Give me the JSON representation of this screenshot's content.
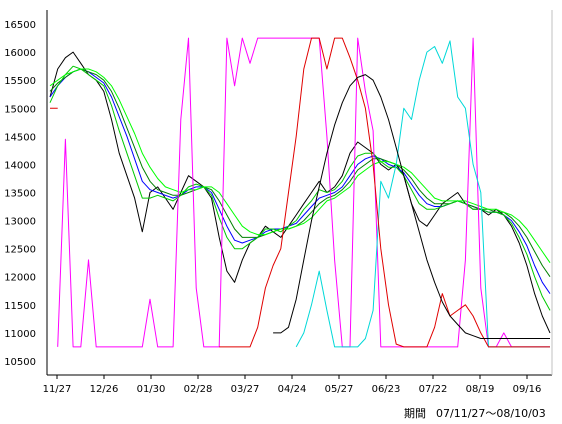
{
  "chart_data": {
    "type": "line",
    "title": "",
    "xlabel": "",
    "ylabel": "",
    "ylim": [
      10250,
      16750
    ],
    "yticks": [
      10500,
      11000,
      11500,
      12000,
      12500,
      13000,
      13500,
      14000,
      14500,
      15000,
      15500,
      16000,
      16500
    ],
    "xticks": [
      "11/27",
      "12/26",
      "01/30",
      "02/28",
      "03/27",
      "04/24",
      "05/27",
      "06/23",
      "07/22",
      "08/19",
      "09/16"
    ],
    "grid": false,
    "legend": "none",
    "series": [
      {
        "color": "#000000",
        "values": [
          15200,
          15700,
          15900,
          16000,
          15800,
          15600,
          15500,
          15300,
          14800,
          14200,
          13800,
          13400,
          12800,
          13500,
          13600,
          13400,
          13200,
          13500,
          13800,
          13700,
          13600,
          13400,
          12700,
          12100,
          11900,
          12300,
          12600,
          12700,
          12900,
          12800,
          12700,
          12900,
          13100,
          13300,
          13500,
          13700,
          13500,
          13600,
          13800,
          14200,
          14400,
          14300,
          14200,
          14000,
          13900,
          14000,
          13800,
          13300,
          13000,
          12900,
          13100,
          13300,
          13400,
          13500,
          13300,
          13200,
          13200,
          13100,
          13200,
          13100,
          12900,
          12600,
          12200,
          11700,
          11300,
          11000
        ]
      },
      {
        "color": "#0000ff",
        "values": [
          15200,
          15400,
          15550,
          15650,
          15700,
          15650,
          15550,
          15450,
          15200,
          14850,
          14500,
          14100,
          13700,
          13550,
          13500,
          13450,
          13400,
          13450,
          13550,
          13600,
          13600,
          13500,
          13200,
          12900,
          12650,
          12600,
          12650,
          12700,
          12800,
          12850,
          12850,
          12900,
          12950,
          13100,
          13250,
          13400,
          13450,
          13500,
          13600,
          13800,
          14000,
          14100,
          14150,
          14100,
          14000,
          13950,
          13850,
          13650,
          13450,
          13300,
          13250,
          13250,
          13300,
          13350,
          13300,
          13250,
          13200,
          13150,
          13150,
          13100,
          13000,
          12800,
          12550,
          12200,
          11900,
          11700
        ]
      },
      {
        "color": "#008000",
        "values": [
          15300,
          15450,
          15550,
          15650,
          15700,
          15650,
          15600,
          15500,
          15300,
          15000,
          14650,
          14300,
          13950,
          13700,
          13550,
          13500,
          13450,
          13450,
          13500,
          13550,
          13600,
          13550,
          13350,
          13100,
          12850,
          12700,
          12700,
          12700,
          12750,
          12800,
          12850,
          12850,
          12900,
          13000,
          13150,
          13300,
          13400,
          13450,
          13550,
          13700,
          13900,
          14000,
          14100,
          14100,
          14050,
          14000,
          13900,
          13750,
          13550,
          13400,
          13300,
          13300,
          13300,
          13350,
          13300,
          13250,
          13200,
          13200,
          13150,
          13150,
          13050,
          12900,
          12700,
          12450,
          12200,
          12000
        ]
      },
      {
        "color": "#00c800",
        "values": [
          15100,
          15400,
          15600,
          15750,
          15700,
          15600,
          15500,
          15400,
          15050,
          14600,
          14200,
          13800,
          13400,
          13400,
          13450,
          13400,
          13350,
          13450,
          13600,
          13650,
          13600,
          13450,
          13050,
          12700,
          12500,
          12500,
          12600,
          12700,
          12850,
          12850,
          12800,
          12900,
          13000,
          13200,
          13350,
          13550,
          13500,
          13550,
          13700,
          13950,
          14150,
          14200,
          14200,
          14050,
          13950,
          13950,
          13800,
          13550,
          13300,
          13200,
          13200,
          13250,
          13300,
          13350,
          13300,
          13200,
          13200,
          13150,
          13150,
          13100,
          12950,
          12700,
          12400,
          12000,
          11650,
          11400
        ]
      },
      {
        "color": "#00ff00",
        "values": [
          15400,
          15500,
          15600,
          15650,
          15700,
          15700,
          15650,
          15550,
          15400,
          15150,
          14850,
          14550,
          14200,
          13950,
          13750,
          13600,
          13550,
          13500,
          13550,
          13550,
          13600,
          13600,
          13500,
          13300,
          13100,
          12900,
          12800,
          12750,
          12750,
          12800,
          12850,
          12850,
          12900,
          12950,
          13050,
          13200,
          13350,
          13400,
          13500,
          13600,
          13800,
          13900,
          14000,
          14050,
          14050,
          14000,
          13950,
          13850,
          13700,
          13550,
          13400,
          13350,
          13350,
          13350,
          13350,
          13300,
          13250,
          13200,
          13200,
          13150,
          13100,
          13000,
          12850,
          12650,
          12450,
          12250
        ]
      },
      {
        "color": "#ff00ff",
        "values": [
          null,
          10750,
          14450,
          10750,
          10750,
          12300,
          10750,
          10750,
          10750,
          10750,
          10750,
          10750,
          10750,
          11600,
          10750,
          10750,
          10750,
          14800,
          16250,
          11800,
          10750,
          10750,
          10750,
          16250,
          15400,
          16250,
          15800,
          16250,
          16250,
          16250,
          16250,
          16250,
          16250,
          16250,
          16250,
          16250,
          14500,
          12300,
          10750,
          10750,
          16250,
          15300,
          14600,
          10750,
          10750,
          10750,
          10750,
          10750,
          10750,
          10750,
          10750,
          10750,
          10750,
          10750,
          12300,
          16250,
          11800,
          10750,
          10750,
          11000,
          10750,
          10750,
          10750,
          10750,
          10750,
          10750
        ]
      },
      {
        "color": "#00d8d8",
        "values": [
          null,
          null,
          null,
          null,
          null,
          null,
          null,
          null,
          null,
          null,
          null,
          null,
          null,
          null,
          null,
          null,
          null,
          null,
          null,
          null,
          null,
          null,
          null,
          null,
          null,
          null,
          null,
          null,
          null,
          null,
          null,
          null,
          10750,
          11000,
          11500,
          12100,
          11400,
          10750,
          10750,
          10750,
          10750,
          10900,
          11400,
          13700,
          13400,
          14000,
          15000,
          14800,
          15500,
          16000,
          16100,
          15800,
          16200,
          15200,
          15000,
          14000,
          13500,
          10750,
          10750,
          10750,
          10750,
          10750,
          10750,
          10750,
          10750,
          10750
        ]
      },
      {
        "color": "#e00000",
        "values": [
          15000,
          15000,
          null,
          null,
          null,
          null,
          null,
          null,
          null,
          null,
          null,
          null,
          null,
          null,
          null,
          null,
          null,
          null,
          null,
          null,
          null,
          null,
          10750,
          10750,
          10750,
          10750,
          10750,
          11100,
          11800,
          12200,
          12500,
          13500,
          14500,
          15700,
          16250,
          16250,
          15700,
          16250,
          16250,
          15900,
          15500,
          15000,
          14000,
          12500,
          11500,
          10800,
          10750,
          10750,
          10750,
          10750,
          11100,
          11700,
          11300,
          11400,
          11500,
          11300,
          11000,
          10750,
          10750,
          10750,
          10750,
          10750,
          10750,
          10750,
          10750,
          10750
        ]
      },
      {
        "color": "#000000",
        "values": [
          null,
          null,
          null,
          null,
          null,
          null,
          null,
          null,
          null,
          null,
          null,
          null,
          null,
          null,
          null,
          null,
          null,
          null,
          null,
          null,
          null,
          null,
          null,
          null,
          null,
          null,
          null,
          null,
          null,
          11000,
          11000,
          11100,
          11600,
          12300,
          13000,
          13600,
          14200,
          14700,
          15100,
          15400,
          15550,
          15600,
          15500,
          15200,
          14800,
          14300,
          13800,
          13300,
          12800,
          12300,
          11900,
          11550,
          11300,
          11150,
          11000,
          10950,
          10900,
          10900,
          10900,
          10900,
          10900,
          10900,
          10900,
          10900,
          10900,
          10900
        ]
      }
    ]
  },
  "footer": {
    "period_label": "期間",
    "period_range": "07/11/27～08/10/03"
  }
}
